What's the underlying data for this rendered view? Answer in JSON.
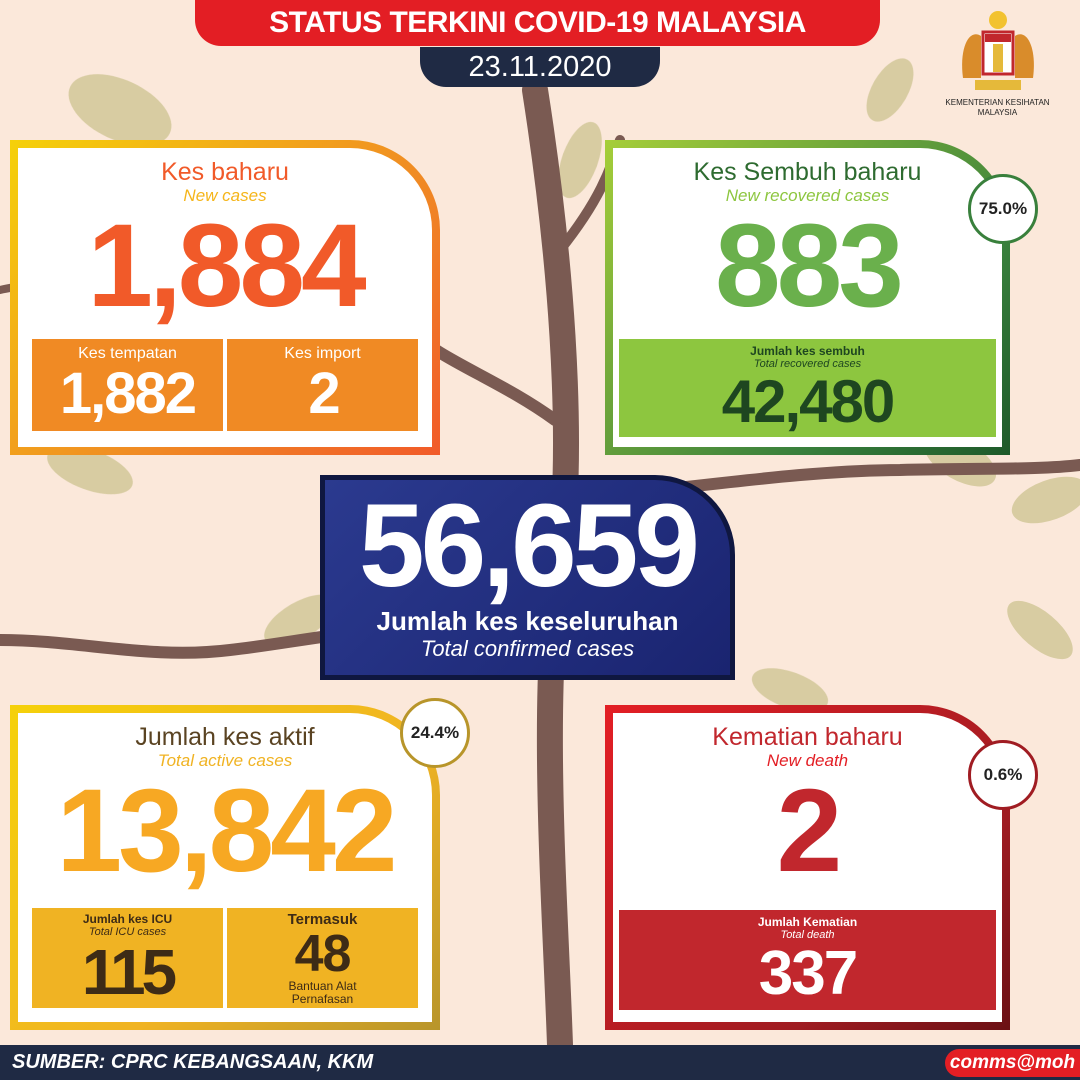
{
  "header": {
    "title": "STATUS TERKINI COVID-19 MALAYSIA",
    "date": "23.11.2020",
    "ministry": "KEMENTERIAN KESIHATAN MALAYSIA",
    "logo_icon": "malaysia-coat-of-arms"
  },
  "new_cases": {
    "title": "Kes baharu",
    "subtitle": "New cases",
    "value": "1,884",
    "local_label": "Kes tempatan",
    "local_value": "1,882",
    "import_label": "Kes import",
    "import_value": "2"
  },
  "recovered": {
    "title": "Kes Sembuh baharu",
    "subtitle": "New recovered cases",
    "value": "883",
    "percent": "75.0%",
    "total_label": "Jumlah kes sembuh",
    "total_sublabel": "Total recovered cases",
    "total_value": "42,480"
  },
  "total": {
    "value": "56,659",
    "label": "Jumlah kes keseluruhan",
    "sublabel": "Total confirmed cases"
  },
  "active": {
    "title": "Jumlah kes aktif",
    "subtitle": "Total active cases",
    "value": "13,842",
    "percent": "24.4%",
    "icu_label": "Jumlah kes ICU",
    "icu_sublabel": "Total ICU cases",
    "icu_value": "115",
    "vent_top": "Termasuk",
    "vent_value": "48",
    "vent_bottom": "Bantuan Alat Pernafasan"
  },
  "death": {
    "title": "Kematian baharu",
    "subtitle": "New death",
    "value": "2",
    "percent": "0.6%",
    "total_label": "Jumlah Kematian",
    "total_sublabel": "Total death",
    "total_value": "337"
  },
  "footer": {
    "source": "SUMBER: CPRC KEBANGSAAN, KKM",
    "handle": "comms@moh"
  },
  "colors": {
    "red": "#e31e24",
    "navy": "#1f2a44",
    "orange": "#f15a29",
    "green": "#6ab04c",
    "yellow": "#f7a823",
    "death_red": "#c1272d"
  }
}
